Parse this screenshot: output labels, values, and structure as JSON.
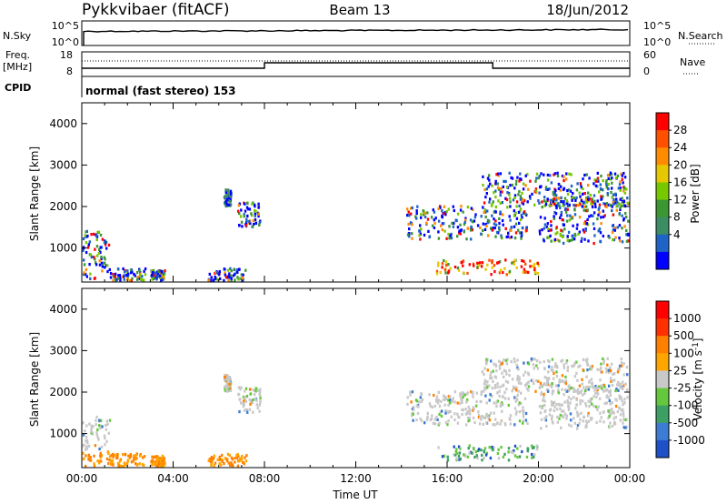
{
  "header": {
    "station": "Pykkvibaer (fitACF)",
    "beam": "Beam 13",
    "date": "18/Jun/2012"
  },
  "strip_panels": {
    "nsky": {
      "left_label": "N.Sky",
      "ticks": [
        "10^5",
        "10^0"
      ],
      "right_label": "N.Search",
      "right_ticks": [
        "10^5",
        "10^0"
      ]
    },
    "freq": {
      "left_label_1": "Freq.",
      "left_label_2": "[MHz]",
      "ticks": [
        "18",
        "8"
      ],
      "right_label": "Nave",
      "right_ticks": [
        "60",
        "0"
      ]
    },
    "cpid": {
      "label": "CPID",
      "text": "normal (fast stereo) 153"
    }
  },
  "chart_data": [
    {
      "type": "heatmap",
      "name": "power",
      "ylabel": "Slant Range [km]",
      "yticks": [
        "1000",
        "2000",
        "3000",
        "4000"
      ],
      "xticks": [
        "00:00",
        "04:00",
        "08:00",
        "12:00",
        "16:00",
        "20:00",
        "00:00"
      ],
      "ylim": [
        180,
        4500
      ],
      "colorbar": {
        "label": "Power [dB]",
        "ticks": [
          "4",
          "8",
          "12",
          "16",
          "20",
          "24",
          "28"
        ],
        "colors": [
          "#0000ff",
          "#1e64c8",
          "#3c8c64",
          "#3c9632",
          "#78c800",
          "#e6c800",
          "#ff8c00",
          "#ff5000",
          "#ff0000"
        ]
      },
      "echo_regions": [
        {
          "t": [
            0.0,
            1.2
          ],
          "range": [
            200,
            1400
          ],
          "level": "mixed"
        },
        {
          "t": [
            1.2,
            2.8
          ],
          "range": [
            200,
            500
          ],
          "level": "mixed"
        },
        {
          "t": [
            3.0,
            3.6
          ],
          "range": [
            200,
            450
          ],
          "level": "mixed"
        },
        {
          "t": [
            5.5,
            7.2
          ],
          "range": [
            200,
            500
          ],
          "level": "mixed"
        },
        {
          "t": [
            6.2,
            6.5
          ],
          "range": [
            2000,
            2400
          ],
          "level": "low"
        },
        {
          "t": [
            6.8,
            7.8
          ],
          "range": [
            1500,
            2100
          ],
          "level": "mixed"
        },
        {
          "t": [
            14.2,
            19.5
          ],
          "range": [
            1200,
            2000
          ],
          "level": "mixed"
        },
        {
          "t": [
            15.5,
            20.0
          ],
          "range": [
            350,
            700
          ],
          "level": "high"
        },
        {
          "t": [
            17.5,
            23.9
          ],
          "range": [
            2000,
            2800
          ],
          "level": "mixed"
        },
        {
          "t": [
            20.0,
            23.9
          ],
          "range": [
            1100,
            2200
          ],
          "level": "mixed"
        }
      ]
    },
    {
      "type": "heatmap",
      "name": "velocity",
      "ylabel": "Slant Range [km]",
      "yticks": [
        "1000",
        "2000",
        "3000",
        "4000"
      ],
      "xticks": [
        "00:00",
        "04:00",
        "08:00",
        "12:00",
        "16:00",
        "20:00",
        "00:00"
      ],
      "xlabel": "Time UT",
      "ylim": [
        180,
        4500
      ],
      "colorbar": {
        "label": "Velocity [m s-1]",
        "ticks": [
          "1000",
          "500",
          "100",
          "25",
          "-25",
          "-100",
          "-500",
          "-1000"
        ],
        "colors": [
          "#1e50c8",
          "#3c7cd2",
          "#3ca064",
          "#64c83c",
          "#c8c8c8",
          "#ffa500",
          "#ff8000",
          "#ff3000",
          "#ff0000"
        ]
      }
    }
  ]
}
